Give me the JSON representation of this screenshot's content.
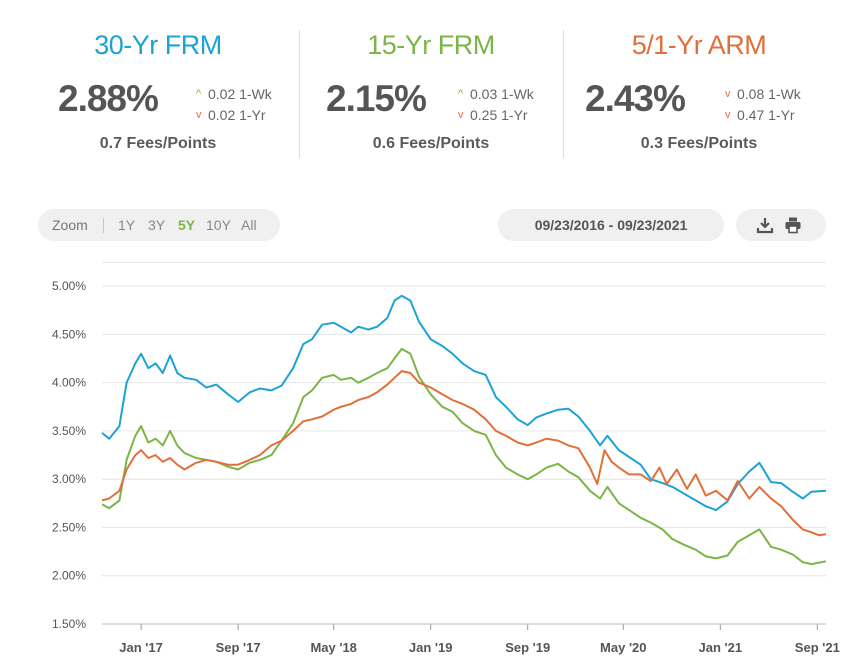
{
  "summary": {
    "fixed30": {
      "title": "30-Yr FRM",
      "rate": "2.88%",
      "wk_change": "0.02 1-Wk",
      "yr_change": "0.02 1-Yr",
      "fees": "0.7 Fees/Points",
      "color": "#1ba3d6"
    },
    "fixed15": {
      "title": "15-Yr FRM",
      "rate": "2.15%",
      "wk_change": "0.03 1-Wk",
      "yr_change": "0.25 1-Yr",
      "fees": "0.6 Fees/Points",
      "color": "#7bb545"
    },
    "arm51": {
      "title": "5/1-Yr ARM",
      "rate": "2.43%",
      "wk_change": "0.08 1-Wk",
      "yr_change": "0.47 1-Yr",
      "fees": "0.3 Fees/Points",
      "color": "#e0703a"
    }
  },
  "toolbar": {
    "zoom_label": "Zoom",
    "ranges": [
      "1Y",
      "3Y",
      "5Y",
      "10Y",
      "All"
    ],
    "active_range": "5Y",
    "date_range": "09/23/2016 - 09/23/2021",
    "download_icon": "download-icon",
    "print_icon": "print-icon"
  },
  "chart_data": {
    "type": "line",
    "title": "",
    "xlabel": "",
    "ylabel": "",
    "ylim": [
      1.5,
      5.25
    ],
    "yticks": [
      "1.50%",
      "2.00%",
      "2.50%",
      "3.00%",
      "3.50%",
      "4.00%",
      "4.50%",
      "5.00%"
    ],
    "xlim": [
      2016.73,
      2021.73
    ],
    "xticks": [
      {
        "x": 2017.0,
        "label": "Jan '17"
      },
      {
        "x": 2017.67,
        "label": "Sep '17"
      },
      {
        "x": 2018.33,
        "label": "May '18"
      },
      {
        "x": 2019.0,
        "label": "Jan '19"
      },
      {
        "x": 2019.67,
        "label": "Sep '19"
      },
      {
        "x": 2020.33,
        "label": "May '20"
      },
      {
        "x": 2021.0,
        "label": "Jan '21"
      },
      {
        "x": 2021.67,
        "label": "Sep '21"
      }
    ],
    "grid": true,
    "series": [
      {
        "name": "30-Yr FRM",
        "color": "#1ba3d6",
        "points": [
          [
            2016.73,
            3.48
          ],
          [
            2016.78,
            3.42
          ],
          [
            2016.85,
            3.55
          ],
          [
            2016.9,
            4.0
          ],
          [
            2016.96,
            4.2
          ],
          [
            2017.0,
            4.3
          ],
          [
            2017.05,
            4.15
          ],
          [
            2017.1,
            4.2
          ],
          [
            2017.15,
            4.1
          ],
          [
            2017.2,
            4.28
          ],
          [
            2017.25,
            4.1
          ],
          [
            2017.3,
            4.05
          ],
          [
            2017.38,
            4.03
          ],
          [
            2017.45,
            3.95
          ],
          [
            2017.52,
            3.98
          ],
          [
            2017.6,
            3.88
          ],
          [
            2017.67,
            3.8
          ],
          [
            2017.75,
            3.9
          ],
          [
            2017.82,
            3.94
          ],
          [
            2017.9,
            3.92
          ],
          [
            2017.97,
            3.97
          ],
          [
            2018.05,
            4.15
          ],
          [
            2018.12,
            4.4
          ],
          [
            2018.18,
            4.45
          ],
          [
            2018.25,
            4.6
          ],
          [
            2018.33,
            4.62
          ],
          [
            2018.38,
            4.58
          ],
          [
            2018.45,
            4.52
          ],
          [
            2018.5,
            4.58
          ],
          [
            2018.57,
            4.55
          ],
          [
            2018.63,
            4.58
          ],
          [
            2018.7,
            4.67
          ],
          [
            2018.75,
            4.85
          ],
          [
            2018.8,
            4.9
          ],
          [
            2018.86,
            4.85
          ],
          [
            2018.92,
            4.63
          ],
          [
            2019.0,
            4.45
          ],
          [
            2019.08,
            4.38
          ],
          [
            2019.15,
            4.3
          ],
          [
            2019.22,
            4.2
          ],
          [
            2019.3,
            4.12
          ],
          [
            2019.38,
            4.08
          ],
          [
            2019.45,
            3.85
          ],
          [
            2019.52,
            3.75
          ],
          [
            2019.6,
            3.62
          ],
          [
            2019.67,
            3.56
          ],
          [
            2019.73,
            3.64
          ],
          [
            2019.8,
            3.68
          ],
          [
            2019.88,
            3.72
          ],
          [
            2019.95,
            3.73
          ],
          [
            2020.02,
            3.65
          ],
          [
            2020.1,
            3.5
          ],
          [
            2020.17,
            3.35
          ],
          [
            2020.22,
            3.45
          ],
          [
            2020.3,
            3.3
          ],
          [
            2020.37,
            3.23
          ],
          [
            2020.45,
            3.15
          ],
          [
            2020.52,
            3.0
          ],
          [
            2020.6,
            2.96
          ],
          [
            2020.67,
            2.92
          ],
          [
            2020.75,
            2.85
          ],
          [
            2020.83,
            2.78
          ],
          [
            2020.9,
            2.72
          ],
          [
            2020.97,
            2.68
          ],
          [
            2021.05,
            2.77
          ],
          [
            2021.12,
            2.95
          ],
          [
            2021.2,
            3.08
          ],
          [
            2021.27,
            3.17
          ],
          [
            2021.35,
            2.97
          ],
          [
            2021.42,
            2.96
          ],
          [
            2021.5,
            2.87
          ],
          [
            2021.57,
            2.8
          ],
          [
            2021.63,
            2.87
          ],
          [
            2021.73,
            2.88
          ]
        ]
      },
      {
        "name": "15-Yr FRM",
        "color": "#7bb545",
        "points": [
          [
            2016.73,
            2.74
          ],
          [
            2016.78,
            2.7
          ],
          [
            2016.85,
            2.78
          ],
          [
            2016.9,
            3.2
          ],
          [
            2016.96,
            3.45
          ],
          [
            2017.0,
            3.55
          ],
          [
            2017.05,
            3.38
          ],
          [
            2017.1,
            3.42
          ],
          [
            2017.15,
            3.35
          ],
          [
            2017.2,
            3.5
          ],
          [
            2017.25,
            3.35
          ],
          [
            2017.3,
            3.27
          ],
          [
            2017.38,
            3.22
          ],
          [
            2017.45,
            3.2
          ],
          [
            2017.52,
            3.18
          ],
          [
            2017.6,
            3.13
          ],
          [
            2017.67,
            3.1
          ],
          [
            2017.75,
            3.17
          ],
          [
            2017.82,
            3.2
          ],
          [
            2017.9,
            3.25
          ],
          [
            2017.97,
            3.4
          ],
          [
            2018.05,
            3.58
          ],
          [
            2018.12,
            3.85
          ],
          [
            2018.18,
            3.92
          ],
          [
            2018.25,
            4.05
          ],
          [
            2018.33,
            4.08
          ],
          [
            2018.38,
            4.03
          ],
          [
            2018.45,
            4.05
          ],
          [
            2018.5,
            4.0
          ],
          [
            2018.57,
            4.05
          ],
          [
            2018.63,
            4.1
          ],
          [
            2018.7,
            4.15
          ],
          [
            2018.75,
            4.25
          ],
          [
            2018.8,
            4.35
          ],
          [
            2018.86,
            4.3
          ],
          [
            2018.92,
            4.06
          ],
          [
            2019.0,
            3.88
          ],
          [
            2019.08,
            3.75
          ],
          [
            2019.15,
            3.7
          ],
          [
            2019.22,
            3.58
          ],
          [
            2019.3,
            3.5
          ],
          [
            2019.38,
            3.46
          ],
          [
            2019.45,
            3.25
          ],
          [
            2019.52,
            3.12
          ],
          [
            2019.6,
            3.05
          ],
          [
            2019.67,
            3.0
          ],
          [
            2019.73,
            3.05
          ],
          [
            2019.8,
            3.12
          ],
          [
            2019.88,
            3.16
          ],
          [
            2019.95,
            3.08
          ],
          [
            2020.02,
            3.02
          ],
          [
            2020.1,
            2.88
          ],
          [
            2020.17,
            2.8
          ],
          [
            2020.22,
            2.92
          ],
          [
            2020.3,
            2.75
          ],
          [
            2020.37,
            2.68
          ],
          [
            2020.45,
            2.6
          ],
          [
            2020.52,
            2.55
          ],
          [
            2020.6,
            2.48
          ],
          [
            2020.67,
            2.38
          ],
          [
            2020.75,
            2.32
          ],
          [
            2020.83,
            2.27
          ],
          [
            2020.9,
            2.2
          ],
          [
            2020.97,
            2.18
          ],
          [
            2021.05,
            2.21
          ],
          [
            2021.12,
            2.35
          ],
          [
            2021.2,
            2.42
          ],
          [
            2021.27,
            2.48
          ],
          [
            2021.35,
            2.3
          ],
          [
            2021.42,
            2.27
          ],
          [
            2021.5,
            2.22
          ],
          [
            2021.57,
            2.14
          ],
          [
            2021.63,
            2.12
          ],
          [
            2021.73,
            2.15
          ]
        ]
      },
      {
        "name": "5/1-Yr ARM",
        "color": "#e0703a",
        "points": [
          [
            2016.73,
            2.78
          ],
          [
            2016.78,
            2.8
          ],
          [
            2016.85,
            2.88
          ],
          [
            2016.9,
            3.1
          ],
          [
            2016.96,
            3.25
          ],
          [
            2017.0,
            3.3
          ],
          [
            2017.05,
            3.22
          ],
          [
            2017.1,
            3.25
          ],
          [
            2017.15,
            3.18
          ],
          [
            2017.2,
            3.22
          ],
          [
            2017.25,
            3.15
          ],
          [
            2017.3,
            3.1
          ],
          [
            2017.38,
            3.17
          ],
          [
            2017.45,
            3.2
          ],
          [
            2017.52,
            3.18
          ],
          [
            2017.6,
            3.15
          ],
          [
            2017.67,
            3.15
          ],
          [
            2017.75,
            3.2
          ],
          [
            2017.82,
            3.25
          ],
          [
            2017.9,
            3.35
          ],
          [
            2017.97,
            3.4
          ],
          [
            2018.05,
            3.5
          ],
          [
            2018.12,
            3.6
          ],
          [
            2018.18,
            3.62
          ],
          [
            2018.25,
            3.65
          ],
          [
            2018.33,
            3.72
          ],
          [
            2018.38,
            3.75
          ],
          [
            2018.45,
            3.78
          ],
          [
            2018.5,
            3.82
          ],
          [
            2018.57,
            3.85
          ],
          [
            2018.63,
            3.9
          ],
          [
            2018.7,
            3.98
          ],
          [
            2018.75,
            4.05
          ],
          [
            2018.8,
            4.12
          ],
          [
            2018.86,
            4.1
          ],
          [
            2018.92,
            4.0
          ],
          [
            2019.0,
            3.95
          ],
          [
            2019.08,
            3.88
          ],
          [
            2019.15,
            3.82
          ],
          [
            2019.22,
            3.78
          ],
          [
            2019.3,
            3.72
          ],
          [
            2019.38,
            3.62
          ],
          [
            2019.45,
            3.5
          ],
          [
            2019.52,
            3.45
          ],
          [
            2019.6,
            3.38
          ],
          [
            2019.67,
            3.35
          ],
          [
            2019.73,
            3.38
          ],
          [
            2019.8,
            3.42
          ],
          [
            2019.88,
            3.4
          ],
          [
            2019.95,
            3.35
          ],
          [
            2020.02,
            3.32
          ],
          [
            2020.1,
            3.12
          ],
          [
            2020.15,
            2.95
          ],
          [
            2020.2,
            3.3
          ],
          [
            2020.25,
            3.18
          ],
          [
            2020.3,
            3.12
          ],
          [
            2020.37,
            3.05
          ],
          [
            2020.45,
            3.05
          ],
          [
            2020.52,
            2.98
          ],
          [
            2020.58,
            3.12
          ],
          [
            2020.63,
            2.95
          ],
          [
            2020.7,
            3.1
          ],
          [
            2020.77,
            2.9
          ],
          [
            2020.83,
            3.05
          ],
          [
            2020.9,
            2.83
          ],
          [
            2020.97,
            2.88
          ],
          [
            2021.05,
            2.78
          ],
          [
            2021.12,
            2.98
          ],
          [
            2021.2,
            2.8
          ],
          [
            2021.27,
            2.92
          ],
          [
            2021.35,
            2.8
          ],
          [
            2021.42,
            2.72
          ],
          [
            2021.5,
            2.58
          ],
          [
            2021.57,
            2.48
          ],
          [
            2021.63,
            2.45
          ],
          [
            2021.68,
            2.42
          ],
          [
            2021.73,
            2.43
          ]
        ]
      }
    ]
  }
}
